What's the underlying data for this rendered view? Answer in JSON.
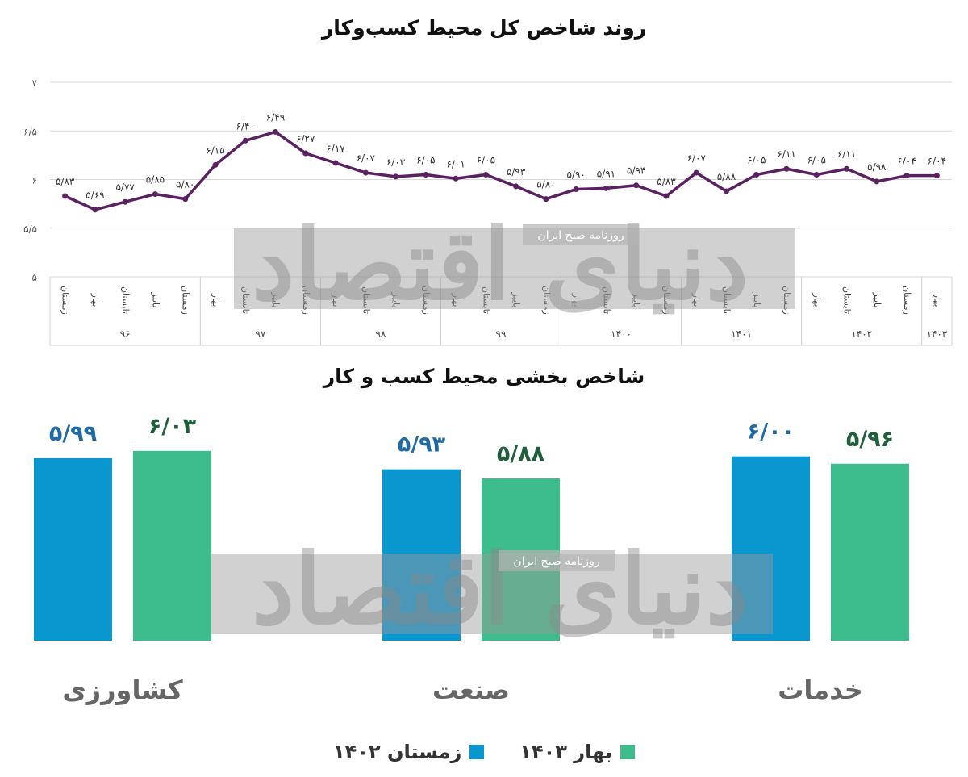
{
  "chart_data": [
    {
      "type": "line",
      "title": "روند شاخص کل محیط کسب‌وکار",
      "ylim": [
        5,
        7
      ],
      "yticks": [
        "۵",
        "۵/۵",
        "۶",
        "۶/۵",
        "۷"
      ],
      "series_color": "#5b2062",
      "x_labels": [
        "زمستان",
        "بهار",
        "تابستان",
        "پاییز",
        "زمستان",
        "بهار",
        "تابستان",
        "پاییز",
        "زمستان",
        "بهار",
        "تابستان",
        "پاییز",
        "زمستان",
        "بهار",
        "تابستان",
        "پاییز",
        "زمستان",
        "بهار",
        "تابستان",
        "پاییز",
        "زمستان",
        "بهار",
        "تابستان",
        "پاییز",
        "زمستان",
        "بهار",
        "تابستان",
        "پاییز",
        "زمستان",
        "بهار"
      ],
      "values": [
        5.83,
        5.69,
        5.77,
        5.85,
        5.8,
        6.15,
        6.4,
        6.49,
        6.27,
        6.17,
        6.07,
        6.03,
        6.05,
        6.01,
        6.05,
        5.93,
        5.8,
        5.9,
        5.91,
        5.94,
        5.83,
        6.07,
        5.88,
        6.05,
        6.11,
        6.05,
        6.11,
        5.98,
        6.04,
        6.04
      ],
      "value_labels": [
        "۵/۸۳",
        "۵/۶۹",
        "۵/۷۷",
        "۵/۸۵",
        "۵/۸۰",
        "۶/۱۵",
        "۶/۴۰",
        "۶/۴۹",
        "۶/۲۷",
        "۶/۱۷",
        "۶/۰۷",
        "۶/۰۳",
        "۶/۰۵",
        "۶/۰۱",
        "۶/۰۵",
        "۵/۹۳",
        "۵/۸۰",
        "۵/۹۰",
        "۵/۹۱",
        "۵/۹۴",
        "۵/۸۳",
        "۶/۰۷",
        "۵/۸۸",
        "۶/۰۵",
        "۶/۱۱",
        "۶/۰۵",
        "۶/۱۱",
        "۵/۹۸",
        "۶/۰۴",
        "۶/۰۴"
      ],
      "year_groups": [
        {
          "label": "۹۶",
          "count": 5
        },
        {
          "label": "۹۷",
          "count": 4
        },
        {
          "label": "۹۸",
          "count": 4
        },
        {
          "label": "۹۹",
          "count": 4
        },
        {
          "label": "۱۴۰۰",
          "count": 4
        },
        {
          "label": "۱۴۰۱",
          "count": 4
        },
        {
          "label": "۱۴۰۲",
          "count": 4
        },
        {
          "label": "۱۴۰۳",
          "count": 1
        }
      ]
    },
    {
      "type": "bar",
      "title": "شاخص بخشی محیط کسب و کار",
      "categories": [
        "کشاورزی",
        "صنعت",
        "خدمات"
      ],
      "ylim": [
        5,
        6.2
      ],
      "series": [
        {
          "name": "زمستان ۱۴۰۲",
          "color": "#0a96cf",
          "label_color": "#1f6aa5",
          "values": [
            5.99,
            5.93,
            6.0
          ],
          "labels": [
            "۵/۹۹",
            "۵/۹۳",
            "۶/۰۰"
          ]
        },
        {
          "name": "بهار ۱۴۰۳",
          "color": "#3dbd8d",
          "label_color": "#1f5f3a",
          "values": [
            6.03,
            5.88,
            5.96
          ],
          "labels": [
            "۶/۰۳",
            "۵/۸۸",
            "۵/۹۶"
          ]
        }
      ]
    }
  ],
  "watermark": {
    "brand": "دنیای اقتصاد",
    "tagline": "روزنامه صبح ایران"
  },
  "legend": [
    {
      "label": "زمستان ۱۴۰۲",
      "color": "#0a96cf"
    },
    {
      "label": "بهار ۱۴۰۳",
      "color": "#3dbd8d"
    }
  ]
}
